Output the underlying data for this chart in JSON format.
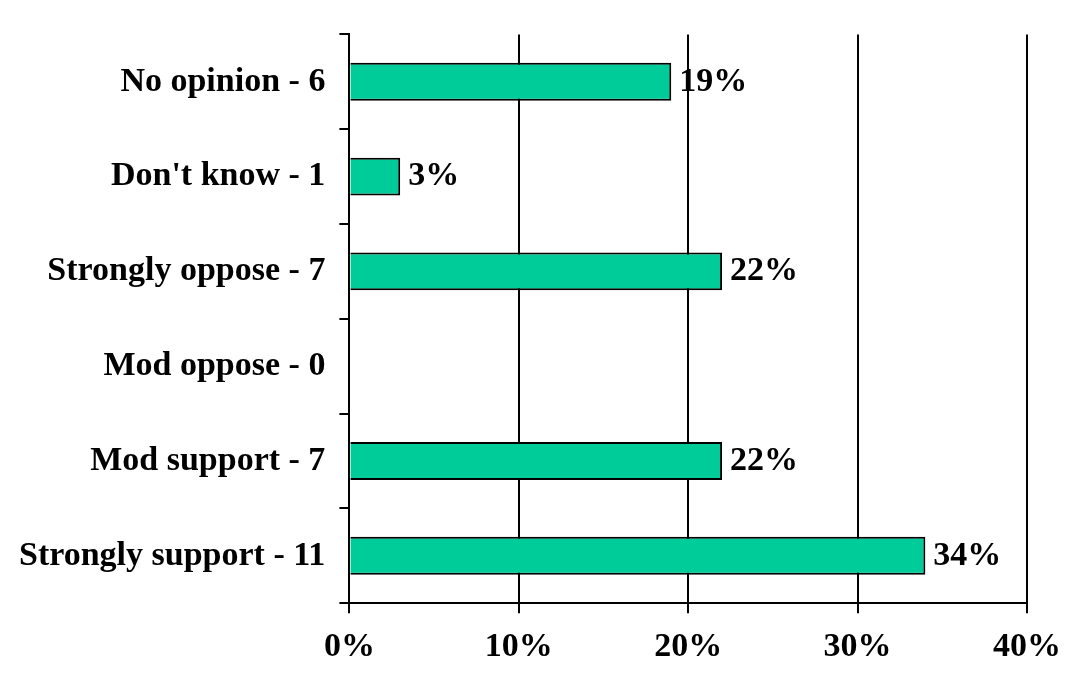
{
  "chart_data": {
    "type": "bar",
    "orientation": "horizontal",
    "categories": [
      "No opinion - 6",
      "Don't know - 1",
      "Strongly oppose - 7",
      "Mod oppose - 0",
      "Mod support - 7",
      "Strongly support - 11"
    ],
    "values": [
      19,
      3,
      22,
      0,
      22,
      34
    ],
    "value_labels": [
      "19%",
      "3%",
      "22%",
      null,
      "22%",
      "34%"
    ],
    "color": "#00cc99",
    "xlim": [
      0,
      40
    ],
    "xticks": [
      {
        "value": 0,
        "label": "0%"
      },
      {
        "value": 10,
        "label": "10%"
      },
      {
        "value": 20,
        "label": "20%"
      },
      {
        "value": 30,
        "label": "30%"
      },
      {
        "value": 40,
        "label": "40%"
      }
    ],
    "grid": "x"
  }
}
